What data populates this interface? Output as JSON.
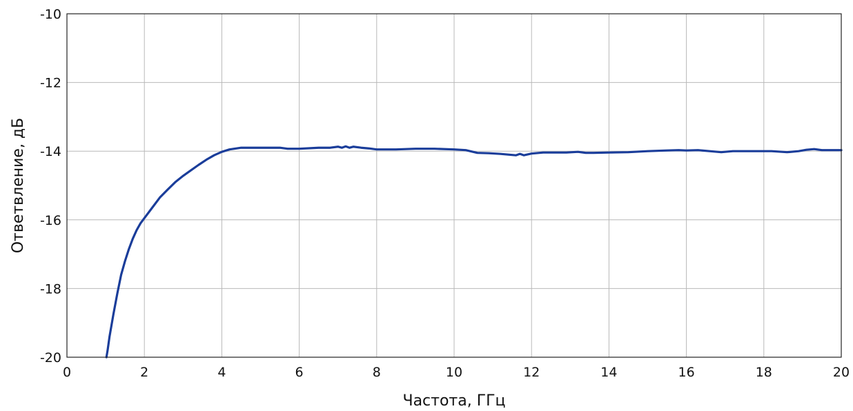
{
  "chart_data": {
    "type": "line",
    "title": "",
    "xlabel": "Частота, ГГц",
    "ylabel": "Ответвление, дБ",
    "xlim": [
      0,
      20
    ],
    "ylim": [
      -20,
      -10
    ],
    "x_ticks": [
      0,
      2,
      4,
      6,
      8,
      10,
      12,
      14,
      16,
      18,
      20
    ],
    "x_tick_labels": [
      "0",
      "2",
      "4",
      "6",
      "8",
      "10",
      "12",
      "14",
      "16",
      "18",
      "20"
    ],
    "y_ticks": [
      -20,
      -18,
      -16,
      -14,
      -12,
      -10
    ],
    "y_tick_labels": [
      "-20",
      "-18",
      "-16",
      "-14",
      "-12",
      "-10"
    ],
    "grid": true,
    "legend": "none",
    "series": [
      {
        "color": "#1a3d9a",
        "x": [
          1.02,
          1.05,
          1.1,
          1.2,
          1.3,
          1.4,
          1.5,
          1.6,
          1.7,
          1.8,
          1.9,
          2.0,
          2.2,
          2.4,
          2.6,
          2.8,
          3.0,
          3.2,
          3.4,
          3.6,
          3.8,
          4.0,
          4.2,
          4.5,
          5.0,
          5.5,
          5.7,
          6.0,
          6.5,
          6.8,
          7.0,
          7.1,
          7.2,
          7.3,
          7.4,
          7.6,
          7.8,
          8.0,
          8.5,
          9.0,
          9.5,
          10.0,
          10.3,
          10.6,
          10.9,
          11.2,
          11.4,
          11.6,
          11.7,
          11.8,
          12.0,
          12.3,
          12.6,
          12.9,
          13.2,
          13.4,
          13.6,
          14.0,
          14.5,
          15.0,
          15.5,
          15.8,
          16.0,
          16.3,
          16.6,
          16.9,
          17.2,
          17.5,
          17.8,
          18.2,
          18.6,
          18.9,
          19.1,
          19.3,
          19.5,
          19.7,
          20.0
        ],
        "y": [
          -20.0,
          -19.8,
          -19.4,
          -18.75,
          -18.15,
          -17.6,
          -17.2,
          -16.85,
          -16.55,
          -16.3,
          -16.1,
          -15.95,
          -15.65,
          -15.35,
          -15.12,
          -14.9,
          -14.72,
          -14.56,
          -14.4,
          -14.25,
          -14.12,
          -14.02,
          -13.95,
          -13.9,
          -13.9,
          -13.9,
          -13.93,
          -13.93,
          -13.9,
          -13.9,
          -13.87,
          -13.9,
          -13.86,
          -13.9,
          -13.87,
          -13.9,
          -13.92,
          -13.95,
          -13.95,
          -13.93,
          -13.93,
          -13.95,
          -13.97,
          -14.05,
          -14.06,
          -14.08,
          -14.1,
          -14.12,
          -14.08,
          -14.12,
          -14.07,
          -14.04,
          -14.04,
          -14.04,
          -14.02,
          -14.05,
          -14.05,
          -14.04,
          -14.03,
          -14.0,
          -13.98,
          -13.97,
          -13.98,
          -13.97,
          -14.0,
          -14.03,
          -14.0,
          -14.0,
          -14.0,
          -14.0,
          -14.03,
          -14.0,
          -13.96,
          -13.94,
          -13.97,
          -13.97,
          -13.97
        ]
      }
    ]
  }
}
